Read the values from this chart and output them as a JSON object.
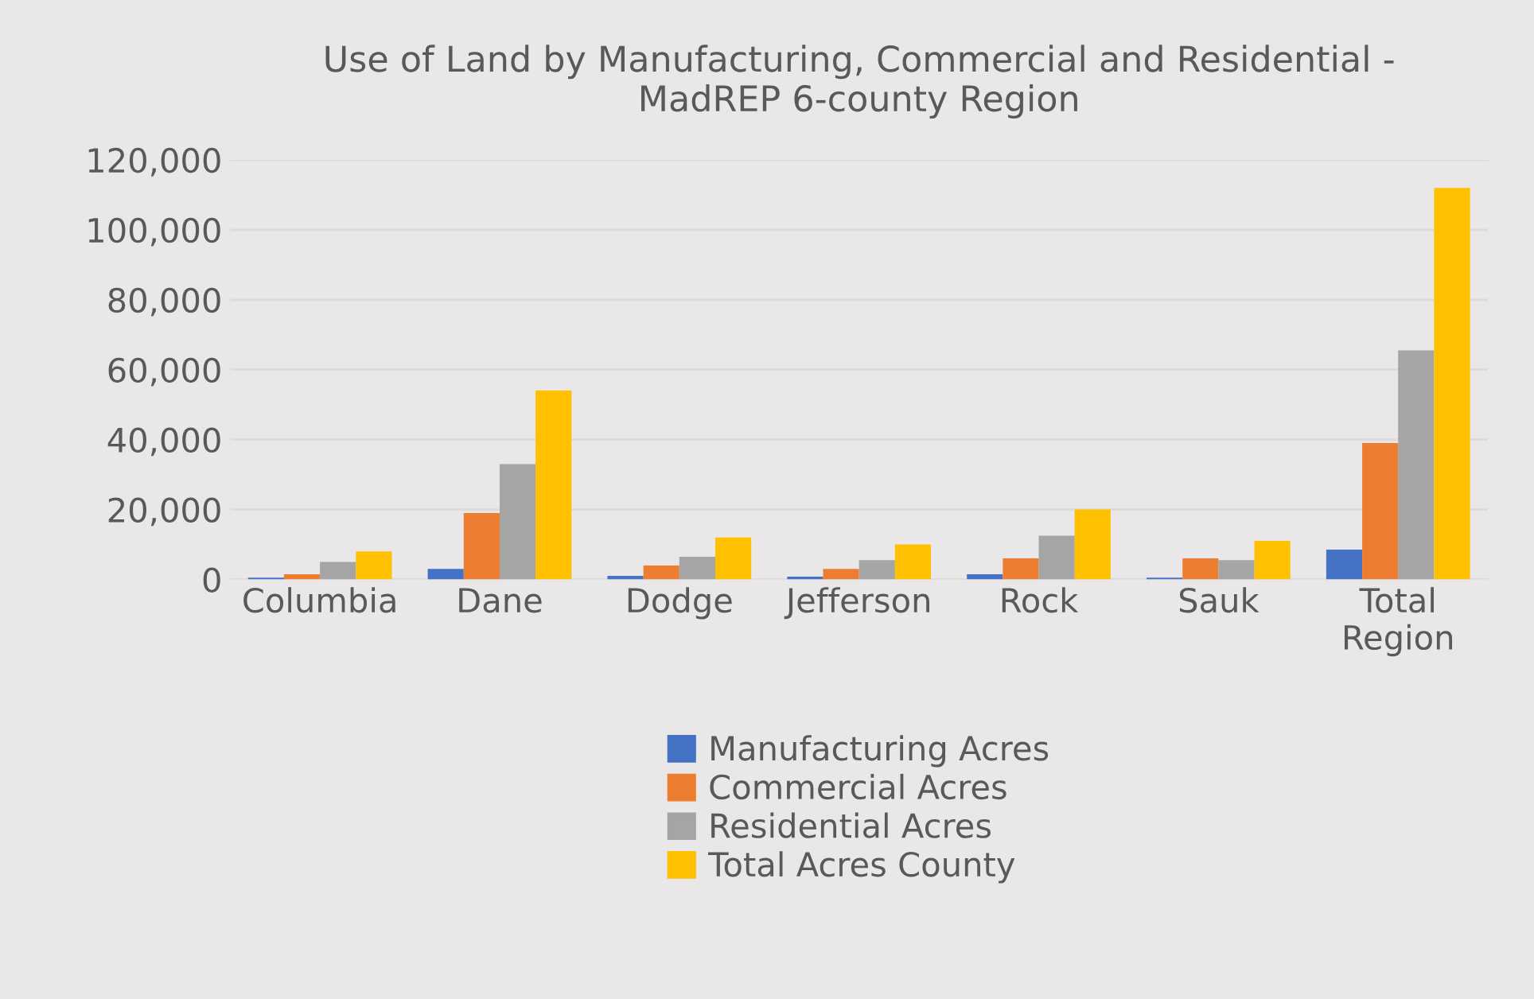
{
  "chart_data": {
    "type": "bar",
    "title": "Use of Land by Manufacturing, Commercial and Residential -\nMadREP 6-county Region",
    "categories": [
      "Columbia",
      "Dane",
      "Dodge",
      "Jefferson",
      "Rock",
      "Sauk",
      "Total\nRegion"
    ],
    "series": [
      {
        "name": "Manufacturing Acres",
        "color": "#4472c4",
        "values": [
          500,
          3000,
          1000,
          800,
          1500,
          500,
          8500
        ]
      },
      {
        "name": "Commercial Acres",
        "color": "#ed7d31",
        "values": [
          1500,
          19000,
          4000,
          3000,
          6000,
          6000,
          39000
        ]
      },
      {
        "name": "Residential Acres",
        "color": "#a5a5a5",
        "values": [
          5000,
          33000,
          6500,
          5500,
          12500,
          5500,
          65500
        ]
      },
      {
        "name": "Total Acres County",
        "color": "#ffc000",
        "values": [
          8000,
          54000,
          12000,
          10000,
          20000,
          11000,
          112000
        ]
      }
    ],
    "ylim": [
      0,
      120000
    ],
    "yticks": [
      {
        "value": 0,
        "label": "0"
      },
      {
        "value": 20000,
        "label": "20,000"
      },
      {
        "value": 40000,
        "label": "40,000"
      },
      {
        "value": 60000,
        "label": "60,000"
      },
      {
        "value": 80000,
        "label": "80,000"
      },
      {
        "value": 100000,
        "label": "100,000"
      },
      {
        "value": 120000,
        "label": "120,000"
      }
    ],
    "grid": "y",
    "legend": "bottom"
  }
}
